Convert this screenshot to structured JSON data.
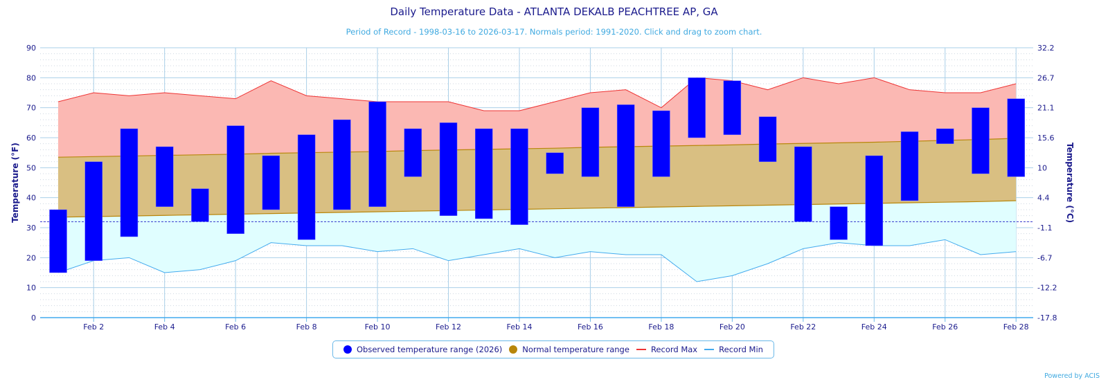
{
  "title": "Daily Temperature Data - ATLANTA DEKALB PEACHTREE AP, GA",
  "subtitle": "Period of Record - 1998-03-16 to 2026-03-17. Normals period: 1991-2020. Click and drag to zoom chart.",
  "credit": "Powered by ACIS",
  "colors": {
    "observed": "#0000ff",
    "normal": "#b8860b",
    "record_max": "#ee3333",
    "record_min": "#42aaee",
    "axis": "#1a1a8c"
  },
  "legend": [
    {
      "label": "Observed temperature range (2026)",
      "kind": "dot",
      "color": "#0000ff"
    },
    {
      "label": "Normal temperature range",
      "kind": "dot",
      "color": "#b8860b"
    },
    {
      "label": "Record Max",
      "kind": "line",
      "color": "#ee3333"
    },
    {
      "label": "Record Min",
      "kind": "line",
      "color": "#42aaee"
    }
  ],
  "chart_data": {
    "type": "bar",
    "title": "Daily Temperature Data - ATLANTA DEKALB PEACHTREE AP, GA",
    "ylabel": "Temperature (°F)",
    "y2label": "Temperature (°C)",
    "ylim": [
      0,
      90
    ],
    "yticks": [
      0,
      10,
      20,
      30,
      40,
      50,
      60,
      70,
      80,
      90
    ],
    "y2ticks": [
      "-17.8",
      "-12.2",
      "-6.7",
      "-1.1",
      "4.4",
      "10",
      "15.6",
      "21.1",
      "26.7",
      "32.2"
    ],
    "xtick_labels": [
      "Feb 2",
      "Feb 4",
      "Feb 6",
      "Feb 8",
      "Feb 10",
      "Feb 12",
      "Feb 14",
      "Feb 16",
      "Feb 18",
      "Feb 20",
      "Feb 22",
      "Feb 24",
      "Feb 26",
      "Feb 28"
    ],
    "freezing_line": 32,
    "days": [
      1,
      2,
      3,
      4,
      5,
      6,
      7,
      8,
      9,
      10,
      11,
      12,
      13,
      14,
      15,
      16,
      17,
      18,
      19,
      20,
      21,
      22,
      23,
      24,
      25,
      26,
      27,
      28
    ],
    "series": [
      {
        "name": "Observed temperature range (2026)",
        "low": [
          15,
          19,
          27,
          37,
          32,
          28,
          36,
          26,
          36,
          37,
          47,
          34,
          33,
          31,
          48,
          47,
          37,
          47,
          60,
          61,
          52,
          32,
          26,
          24,
          39,
          58,
          48,
          47
        ],
        "high": [
          36,
          52,
          63,
          57,
          43,
          64,
          54,
          61,
          66,
          72,
          63,
          65,
          63,
          63,
          55,
          70,
          71,
          69,
          80,
          79,
          67,
          57,
          37,
          54,
          62,
          63,
          70,
          73
        ]
      },
      {
        "name": "Normal temperature range",
        "low": [
          33.5,
          33.7,
          33.9,
          34.1,
          34.3,
          34.5,
          34.7,
          34.9,
          35.1,
          35.3,
          35.5,
          35.7,
          35.9,
          36.1,
          36.3,
          36.5,
          36.7,
          36.9,
          37.1,
          37.3,
          37.5,
          37.7,
          37.9,
          38.1,
          38.3,
          38.5,
          38.7,
          39
        ],
        "high": [
          53.5,
          53.7,
          53.9,
          54.1,
          54.3,
          54.5,
          54.8,
          55,
          55.2,
          55.4,
          55.7,
          55.9,
          56.1,
          56.3,
          56.5,
          56.8,
          57,
          57.2,
          57.4,
          57.6,
          57.9,
          58.1,
          58.3,
          58.5,
          58.8,
          59.1,
          59.4,
          59.8
        ]
      },
      {
        "name": "Record Max",
        "values": [
          72,
          75,
          74,
          75,
          74,
          73,
          79,
          74,
          73,
          72,
          72,
          72,
          69,
          69,
          72,
          75,
          76,
          70,
          80,
          79,
          76,
          80,
          78,
          80,
          76,
          75,
          75,
          78
        ]
      },
      {
        "name": "Record Min",
        "values": [
          15,
          19,
          20,
          15,
          16,
          19,
          25,
          24,
          24,
          22,
          23,
          19,
          21,
          23,
          20,
          22,
          21,
          21,
          12,
          14,
          18,
          23,
          25,
          24,
          24,
          26,
          21,
          22
        ]
      }
    ]
  }
}
